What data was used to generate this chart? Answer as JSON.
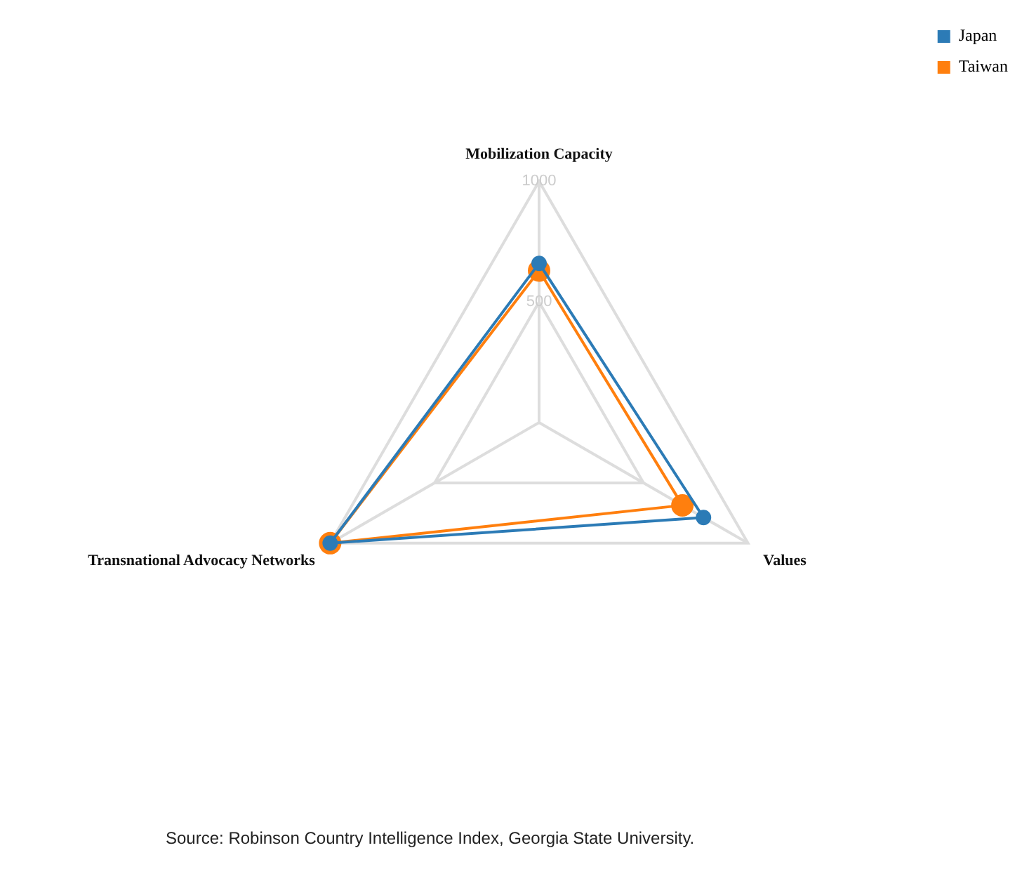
{
  "chart_data": {
    "type": "radar",
    "categories": [
      "Mobilization Capacity",
      "Values",
      "Transnational Advocacy Networks"
    ],
    "series": [
      {
        "name": "Japan",
        "color": "#2c7bb6",
        "values": [
          660,
          787,
          1000
        ]
      },
      {
        "name": "Taiwan",
        "color": "#ff7f0e",
        "values": [
          630,
          686,
          1000
        ]
      }
    ],
    "ylim": [
      0,
      1000
    ],
    "yticks": [
      500,
      1000
    ],
    "legend": "top right",
    "marker": "circle",
    "grid": true,
    "annotations": [
      "Source: Robinson Country Intelligence Index, Georgia State University."
    ]
  }
}
